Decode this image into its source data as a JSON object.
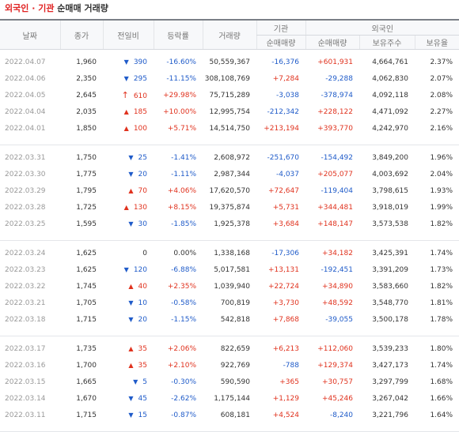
{
  "title": {
    "part1": "외국인",
    "sep": " · ",
    "part2": "기관",
    "part3": " 순매매 거래량"
  },
  "headers": {
    "date": "날짜",
    "close": "종가",
    "change": "전일비",
    "rate": "등락률",
    "volume": "거래량",
    "inst_group": "기관",
    "foreign_group": "외국인",
    "inst_net": "순매매량",
    "foreign_net": "순매매량",
    "holdings": "보유주수",
    "ratio": "보유율"
  },
  "colors": {
    "up": "#e0321e",
    "down": "#1f5bc9"
  },
  "icons": {
    "up": "triangle-up-icon",
    "down": "triangle-down-icon",
    "upper_limit": "arrow-up-icon"
  },
  "rows": [
    {
      "date": "2022.04.07",
      "close": "1,960",
      "dir": "down",
      "change": "390",
      "rate": "-16.60%",
      "volume": "50,559,367",
      "inst": "-16,376",
      "foreign": "+601,931",
      "holdings": "4,664,761",
      "ratio": "2.37%"
    },
    {
      "date": "2022.04.06",
      "close": "2,350",
      "dir": "down",
      "change": "295",
      "rate": "-11.15%",
      "volume": "308,108,769",
      "inst": "+7,284",
      "foreign": "-29,288",
      "holdings": "4,062,830",
      "ratio": "2.07%"
    },
    {
      "date": "2022.04.05",
      "close": "2,645",
      "dir": "upper",
      "change": "610",
      "rate": "+29.98%",
      "volume": "75,715,289",
      "inst": "-3,038",
      "foreign": "-378,974",
      "holdings": "4,092,118",
      "ratio": "2.08%"
    },
    {
      "date": "2022.04.04",
      "close": "2,035",
      "dir": "up",
      "change": "185",
      "rate": "+10.00%",
      "volume": "12,995,754",
      "inst": "-212,342",
      "foreign": "+228,122",
      "holdings": "4,471,092",
      "ratio": "2.27%"
    },
    {
      "date": "2022.04.01",
      "close": "1,850",
      "dir": "up",
      "change": "100",
      "rate": "+5.71%",
      "volume": "14,514,750",
      "inst": "+213,194",
      "foreign": "+393,770",
      "holdings": "4,242,970",
      "ratio": "2.16%"
    },
    {
      "date": "2022.03.31",
      "close": "1,750",
      "dir": "down",
      "change": "25",
      "rate": "-1.41%",
      "volume": "2,608,972",
      "inst": "-251,670",
      "foreign": "-154,492",
      "holdings": "3,849,200",
      "ratio": "1.96%"
    },
    {
      "date": "2022.03.30",
      "close": "1,775",
      "dir": "down",
      "change": "20",
      "rate": "-1.11%",
      "volume": "2,987,344",
      "inst": "-4,037",
      "foreign": "+205,077",
      "holdings": "4,003,692",
      "ratio": "2.04%"
    },
    {
      "date": "2022.03.29",
      "close": "1,795",
      "dir": "up",
      "change": "70",
      "rate": "+4.06%",
      "volume": "17,620,570",
      "inst": "+72,647",
      "foreign": "-119,404",
      "holdings": "3,798,615",
      "ratio": "1.93%"
    },
    {
      "date": "2022.03.28",
      "close": "1,725",
      "dir": "up",
      "change": "130",
      "rate": "+8.15%",
      "volume": "19,375,874",
      "inst": "+5,731",
      "foreign": "+344,481",
      "holdings": "3,918,019",
      "ratio": "1.99%"
    },
    {
      "date": "2022.03.25",
      "close": "1,595",
      "dir": "down",
      "change": "30",
      "rate": "-1.85%",
      "volume": "1,925,378",
      "inst": "+3,684",
      "foreign": "+148,147",
      "holdings": "3,573,538",
      "ratio": "1.82%"
    },
    {
      "date": "2022.03.24",
      "close": "1,625",
      "dir": "none",
      "change": "0",
      "rate": "0.00%",
      "volume": "1,338,168",
      "inst": "-17,306",
      "foreign": "+34,182",
      "holdings": "3,425,391",
      "ratio": "1.74%"
    },
    {
      "date": "2022.03.23",
      "close": "1,625",
      "dir": "down",
      "change": "120",
      "rate": "-6.88%",
      "volume": "5,017,581",
      "inst": "+13,131",
      "foreign": "-192,451",
      "holdings": "3,391,209",
      "ratio": "1.73%"
    },
    {
      "date": "2022.03.22",
      "close": "1,745",
      "dir": "up",
      "change": "40",
      "rate": "+2.35%",
      "volume": "1,039,940",
      "inst": "+22,724",
      "foreign": "+34,890",
      "holdings": "3,583,660",
      "ratio": "1.82%"
    },
    {
      "date": "2022.03.21",
      "close": "1,705",
      "dir": "down",
      "change": "10",
      "rate": "-0.58%",
      "volume": "700,819",
      "inst": "+3,730",
      "foreign": "+48,592",
      "holdings": "3,548,770",
      "ratio": "1.81%"
    },
    {
      "date": "2022.03.18",
      "close": "1,715",
      "dir": "down",
      "change": "20",
      "rate": "-1.15%",
      "volume": "542,818",
      "inst": "+7,868",
      "foreign": "-39,055",
      "holdings": "3,500,178",
      "ratio": "1.78%"
    },
    {
      "date": "2022.03.17",
      "close": "1,735",
      "dir": "up",
      "change": "35",
      "rate": "+2.06%",
      "volume": "822,659",
      "inst": "+6,213",
      "foreign": "+112,060",
      "holdings": "3,539,233",
      "ratio": "1.80%"
    },
    {
      "date": "2022.03.16",
      "close": "1,700",
      "dir": "up",
      "change": "35",
      "rate": "+2.10%",
      "volume": "922,769",
      "inst": "-788",
      "foreign": "+129,374",
      "holdings": "3,427,173",
      "ratio": "1.74%"
    },
    {
      "date": "2022.03.15",
      "close": "1,665",
      "dir": "down",
      "change": "5",
      "rate": "-0.30%",
      "volume": "590,590",
      "inst": "+365",
      "foreign": "+30,757",
      "holdings": "3,297,799",
      "ratio": "1.68%"
    },
    {
      "date": "2022.03.14",
      "close": "1,670",
      "dir": "down",
      "change": "45",
      "rate": "-2.62%",
      "volume": "1,175,144",
      "inst": "+1,129",
      "foreign": "+45,246",
      "holdings": "3,267,042",
      "ratio": "1.66%"
    },
    {
      "date": "2022.03.11",
      "close": "1,715",
      "dir": "down",
      "change": "15",
      "rate": "-0.87%",
      "volume": "608,181",
      "inst": "+4,524",
      "foreign": "-8,240",
      "holdings": "3,221,796",
      "ratio": "1.64%"
    }
  ]
}
